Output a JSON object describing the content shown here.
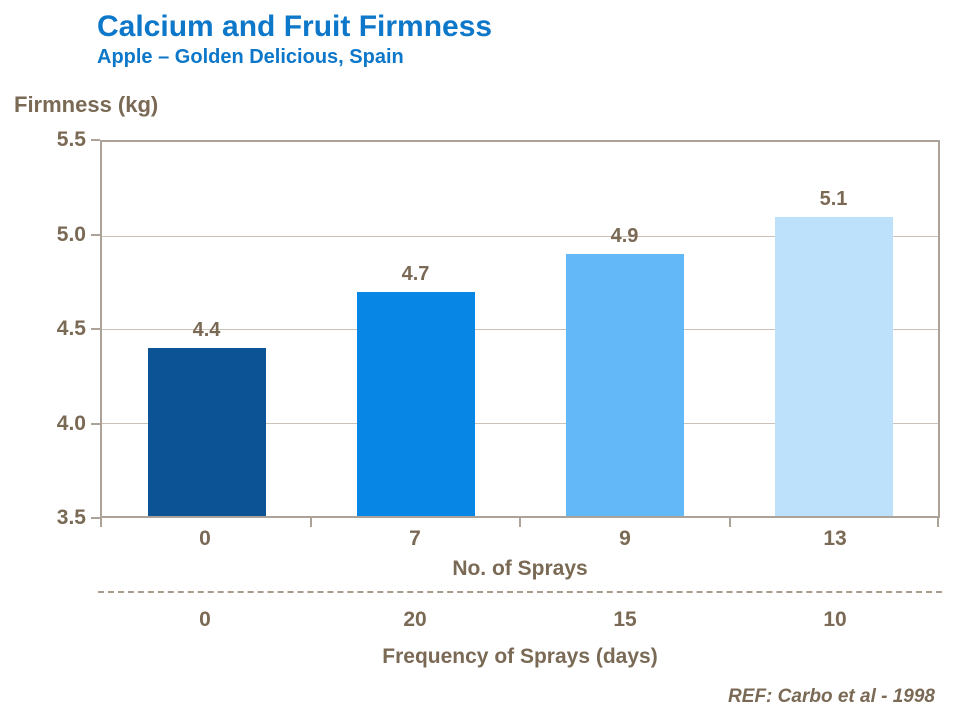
{
  "header": {
    "title": "Calcium and Fruit Firmness",
    "subtitle": "Apple – Golden Delicious, Spain"
  },
  "chart_data": {
    "type": "bar",
    "title": "Calcium and Fruit Firmness",
    "subtitle": "Apple – Golden Delicious, Spain",
    "ylabel": "Firmness (kg)",
    "ylim": [
      3.5,
      5.5
    ],
    "yticks": [
      3.5,
      4.0,
      4.5,
      5.0,
      5.5
    ],
    "grid": true,
    "legend_position": "none",
    "categories": [
      "0",
      "7",
      "9",
      "13"
    ],
    "xlabel": "No. of Sprays",
    "secondary_categories": [
      "0",
      "20",
      "15",
      "10"
    ],
    "secondary_xlabel": "Frequency of Sprays (days)",
    "series": [
      {
        "name": "Firmness (kg)",
        "values": [
          4.4,
          4.7,
          4.9,
          5.1
        ]
      }
    ],
    "bar_colors": [
      "#0b5394",
      "#0886e6",
      "#63b8f7",
      "#bde0fb"
    ]
  },
  "footer": {
    "reference": "REF: Carbo et al - 1998"
  },
  "colors": {
    "title_blue": "#0d77c9",
    "text_brown": "#7a6a55",
    "axis_border": "#ada298",
    "gridline": "#cbc2b6",
    "dashed_line": "#a89b8c"
  }
}
